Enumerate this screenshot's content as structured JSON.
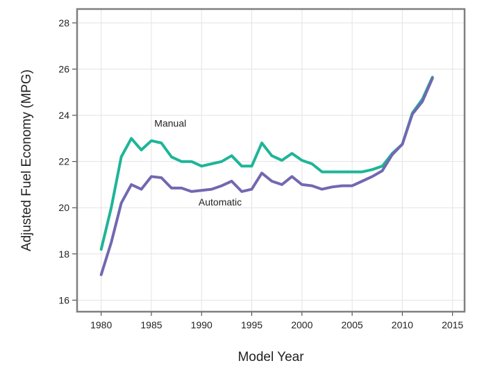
{
  "chart_data": {
    "type": "line",
    "xlabel": "Model Year",
    "ylabel": "Adjusted Fuel Economy (MPG)",
    "xlim": [
      1977.6,
      2016.2
    ],
    "ylim": [
      15.5,
      28.6
    ],
    "x_ticks": [
      1980,
      1985,
      1990,
      1995,
      2000,
      2005,
      2010,
      2015
    ],
    "y_ticks": [
      16,
      18,
      20,
      22,
      24,
      26,
      28
    ],
    "grid": true,
    "x": [
      1980,
      1981,
      1982,
      1983,
      1984,
      1985,
      1986,
      1987,
      1988,
      1989,
      1990,
      1991,
      1992,
      1993,
      1994,
      1995,
      1996,
      1997,
      1998,
      1999,
      2000,
      2001,
      2002,
      2003,
      2004,
      2005,
      2006,
      2007,
      2008,
      2009,
      2010,
      2011,
      2012,
      2013
    ],
    "series": [
      {
        "name": "Manual",
        "color": "#1db598",
        "label_at": [
          1985.3,
          23.5
        ],
        "values": [
          18.2,
          20.0,
          22.2,
          23.0,
          22.5,
          22.9,
          22.8,
          22.2,
          22.0,
          22.0,
          21.8,
          21.9,
          22.0,
          22.25,
          21.8,
          21.8,
          22.8,
          22.25,
          22.05,
          22.35,
          22.05,
          21.9,
          21.55,
          21.55,
          21.55,
          21.55,
          21.55,
          21.65,
          21.8,
          22.35,
          22.75,
          24.1,
          24.7,
          25.65
        ]
      },
      {
        "name": "Automatic",
        "color": "#7268b0",
        "label_at": [
          1989.7,
          20.1
        ],
        "values": [
          17.1,
          18.5,
          20.2,
          21.0,
          20.8,
          21.35,
          21.3,
          20.85,
          20.85,
          20.7,
          20.75,
          20.8,
          20.95,
          21.15,
          20.7,
          20.8,
          21.5,
          21.15,
          21.0,
          21.35,
          21.0,
          20.95,
          20.8,
          20.9,
          20.95,
          20.95,
          21.15,
          21.35,
          21.6,
          22.3,
          22.75,
          24.05,
          24.6,
          25.6
        ]
      }
    ]
  }
}
